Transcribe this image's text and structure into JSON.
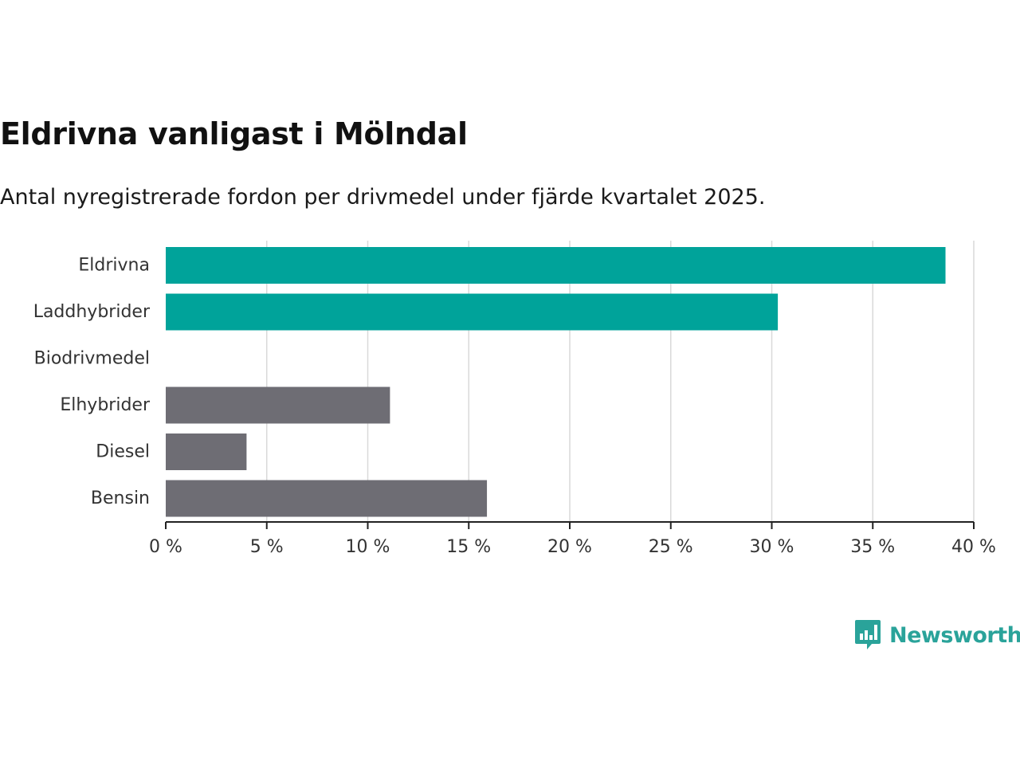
{
  "header": {
    "title": "Eldrivna vanligast i Mölndal",
    "subtitle": "Antal nyregistrerade fordon per drivmedel under fjärde kvartalet 2025."
  },
  "brand": {
    "name": "Newsworthy",
    "icon": "newsworthy-logo-icon"
  },
  "colors": {
    "highlight": "#00a39a",
    "neutral": "#6e6d74",
    "grid": "#d9d9d9",
    "axis": "#222222"
  },
  "chart_data": {
    "type": "bar",
    "orientation": "horizontal",
    "categories": [
      "Eldrivna",
      "Laddhybrider",
      "Biodrivmedel",
      "Elhybrider",
      "Diesel",
      "Bensin"
    ],
    "values": [
      38.6,
      30.3,
      0,
      11.1,
      4.0,
      15.9
    ],
    "highlighted": [
      true,
      true,
      false,
      false,
      false,
      false
    ],
    "unit": "%",
    "xlim": [
      0,
      40
    ],
    "xticks": [
      0,
      5,
      10,
      15,
      20,
      25,
      30,
      35,
      40
    ],
    "xtick_labels": [
      "0 %",
      "5 %",
      "10 %",
      "15 %",
      "20 %",
      "25 %",
      "30 %",
      "35 %",
      "40 %"
    ],
    "grid": true,
    "title": "Eldrivna vanligast i Mölndal",
    "xlabel": "",
    "ylabel": ""
  }
}
